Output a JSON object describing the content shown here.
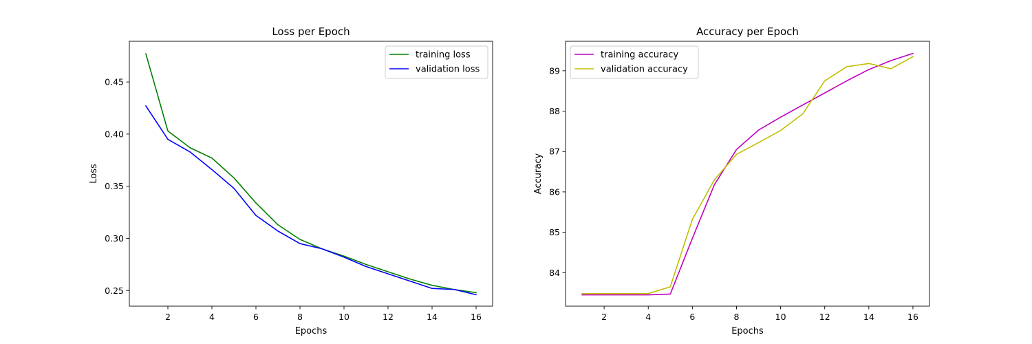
{
  "chart_data": [
    {
      "type": "line",
      "title": "Loss per Epoch",
      "xlabel": "Epochs",
      "ylabel": "Loss",
      "xlim": [
        0.25,
        16.75
      ],
      "ylim": [
        0.235,
        0.489
      ],
      "xticks": [
        2,
        4,
        6,
        8,
        10,
        12,
        14,
        16
      ],
      "yticks": [
        0.25,
        0.3,
        0.35,
        0.4,
        0.45
      ],
      "ytick_labels": [
        "0.25",
        "0.30",
        "0.35",
        "0.40",
        "0.45"
      ],
      "grid": false,
      "legend_position": "top-right",
      "x": [
        1,
        2,
        3,
        4,
        5,
        6,
        7,
        8,
        9,
        10,
        11,
        12,
        13,
        14,
        15,
        16
      ],
      "series": [
        {
          "name": "training loss",
          "color": "#008000",
          "values": [
            0.477,
            0.403,
            0.387,
            0.377,
            0.358,
            0.334,
            0.313,
            0.299,
            0.29,
            0.283,
            0.275,
            0.268,
            0.261,
            0.255,
            0.251,
            0.248
          ]
        },
        {
          "name": "validation loss",
          "color": "#0000ff",
          "values": [
            0.427,
            0.395,
            0.383,
            0.366,
            0.348,
            0.322,
            0.307,
            0.295,
            0.29,
            0.282,
            0.273,
            0.266,
            0.259,
            0.252,
            0.251,
            0.246
          ]
        }
      ]
    },
    {
      "type": "line",
      "title": "Accuracy per Epoch",
      "xlabel": "Epochs",
      "ylabel": "Accuracy",
      "xlim": [
        0.25,
        16.75
      ],
      "ylim": [
        83.17,
        89.73
      ],
      "xticks": [
        2,
        4,
        6,
        8,
        10,
        12,
        14,
        16
      ],
      "yticks": [
        84,
        85,
        86,
        87,
        88,
        89
      ],
      "ytick_labels": [
        "84",
        "85",
        "86",
        "87",
        "88",
        "89"
      ],
      "grid": false,
      "legend_position": "top-left",
      "x": [
        1,
        2,
        3,
        4,
        5,
        6,
        7,
        8,
        9,
        10,
        11,
        12,
        13,
        14,
        15,
        16
      ],
      "series": [
        {
          "name": "training accuracy",
          "color": "#bf00bf",
          "values": [
            83.45,
            83.45,
            83.45,
            83.45,
            83.47,
            84.85,
            86.18,
            87.05,
            87.53,
            87.85,
            88.15,
            88.45,
            88.75,
            89.03,
            89.25,
            89.43
          ]
        },
        {
          "name": "validation accuracy",
          "color": "#bfbf00",
          "values": [
            83.48,
            83.48,
            83.48,
            83.48,
            83.65,
            85.32,
            86.3,
            86.93,
            87.22,
            87.52,
            87.93,
            88.75,
            89.1,
            89.18,
            89.05,
            89.35
          ]
        }
      ]
    }
  ]
}
